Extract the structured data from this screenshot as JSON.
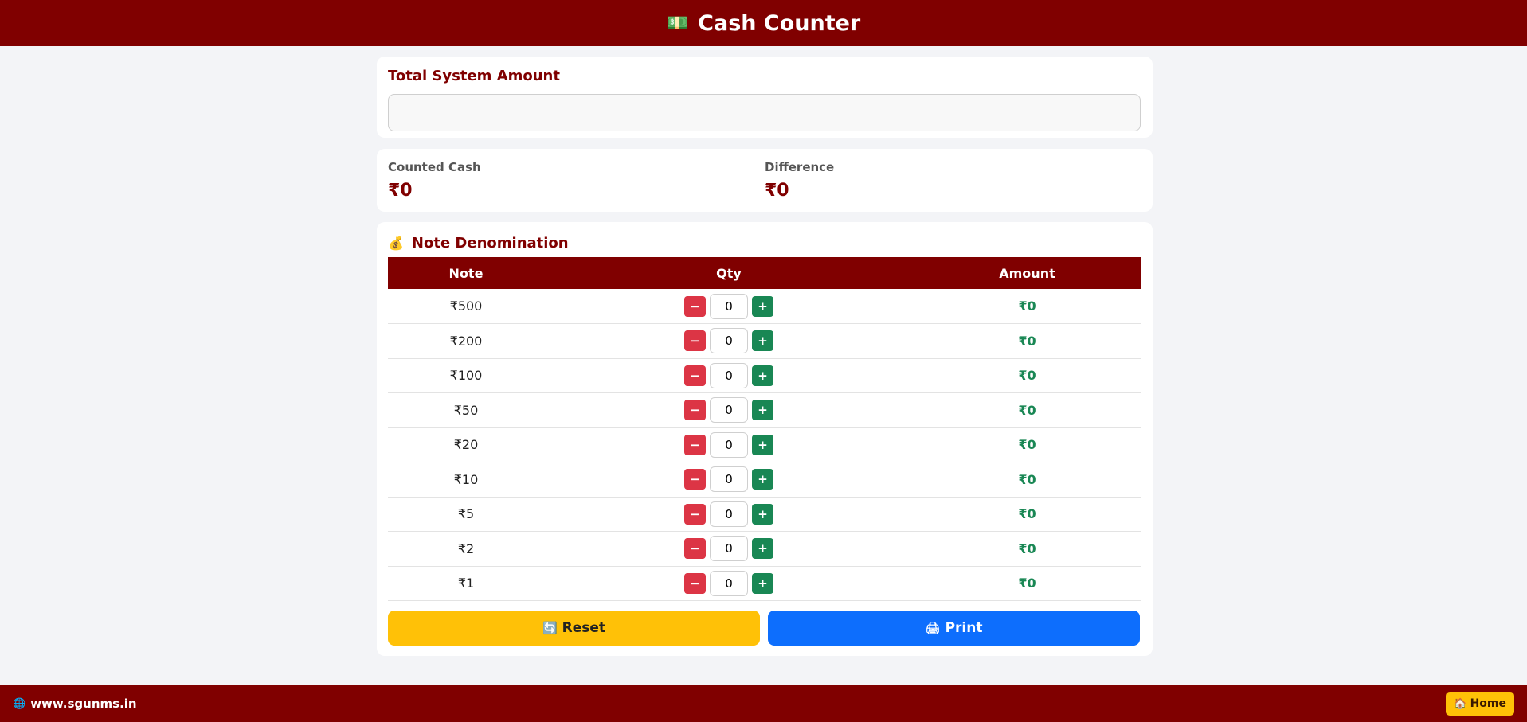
{
  "header": {
    "icon": "money-icon",
    "title": "Cash Counter"
  },
  "system": {
    "label": "Total System Amount",
    "value": "",
    "placeholder": ""
  },
  "summary": {
    "counted_label": "Counted Cash",
    "counted_value": "₹0",
    "difference_label": "Difference",
    "difference_value": "₹0"
  },
  "notes": {
    "title": "Note Denomination",
    "icon": "money-bag-icon",
    "columns": {
      "note": "Note",
      "qty": "Qty",
      "amount": "Amount"
    },
    "rows": [
      {
        "note": "₹500",
        "qty": "0",
        "amount": "₹0"
      },
      {
        "note": "₹200",
        "qty": "0",
        "amount": "₹0"
      },
      {
        "note": "₹100",
        "qty": "0",
        "amount": "₹0"
      },
      {
        "note": "₹50",
        "qty": "0",
        "amount": "₹0"
      },
      {
        "note": "₹20",
        "qty": "0",
        "amount": "₹0"
      },
      {
        "note": "₹10",
        "qty": "0",
        "amount": "₹0"
      },
      {
        "note": "₹5",
        "qty": "0",
        "amount": "₹0"
      },
      {
        "note": "₹2",
        "qty": "0",
        "amount": "₹0"
      },
      {
        "note": "₹1",
        "qty": "0",
        "amount": "₹0"
      }
    ],
    "minus_label": "−",
    "plus_label": "+"
  },
  "actions": {
    "reset_label": "Reset",
    "print_label": "Print"
  },
  "footer": {
    "site": "www.sgunms.in",
    "home_label": "Home"
  },
  "colors": {
    "brand": "#800000",
    "reset": "#ffc107",
    "print": "#0d6efd",
    "minus": "#dc3545",
    "plus": "#198754"
  }
}
